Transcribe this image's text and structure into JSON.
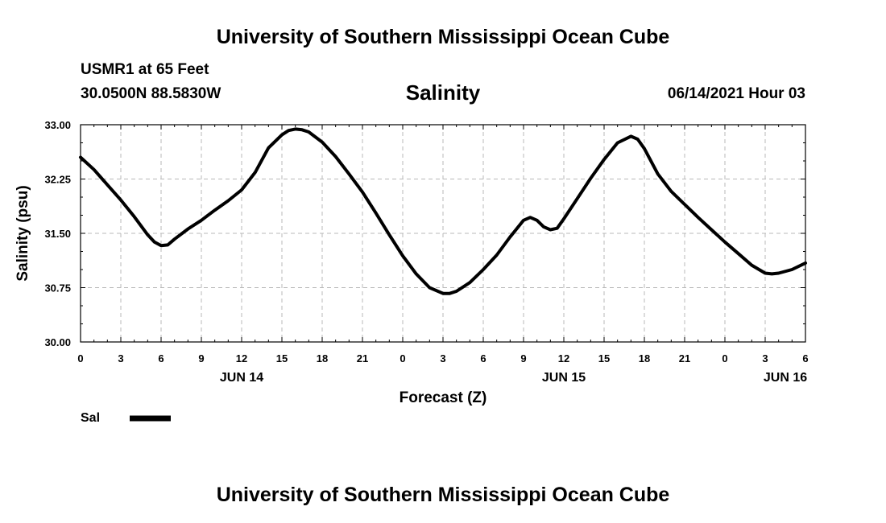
{
  "page": {
    "title_top": "University of Southern Mississippi Ocean Cube",
    "title_bottom": "University of Southern Mississippi Ocean Cube",
    "station": "USMR1 at 65 Feet",
    "coordinates": "30.0500N  88.5830W",
    "subtitle": "Salinity",
    "datetime": "06/14/2021 Hour 03"
  },
  "chart_data": {
    "type": "line",
    "title": "Salinity",
    "xlabel": "Forecast (Z)",
    "ylabel": "Salinity (psu)",
    "ylim": [
      30.0,
      33.0
    ],
    "yticks": [
      "30.00",
      "30.75",
      "31.50",
      "32.25",
      "33.00"
    ],
    "ytick_values": [
      30.0,
      30.75,
      31.5,
      32.25,
      33.0
    ],
    "xlim": [
      0,
      54
    ],
    "xticks": [
      0,
      3,
      6,
      9,
      12,
      15,
      18,
      21,
      24,
      27,
      30,
      33,
      36,
      39,
      42,
      45,
      48,
      51,
      54
    ],
    "xtick_labels": [
      "0",
      "3",
      "6",
      "9",
      "12",
      "15",
      "18",
      "21",
      "0",
      "3",
      "6",
      "9",
      "12",
      "15",
      "18",
      "21",
      "0",
      "3",
      "6"
    ],
    "day_labels": [
      {
        "hour": 12,
        "label": "JUN 14"
      },
      {
        "hour": 36,
        "label": "JUN 15"
      },
      {
        "hour": 52.5,
        "label": "JUN 16"
      }
    ],
    "grid": true,
    "legend": {
      "label": "Sal",
      "position": "bottom-left"
    },
    "series": [
      {
        "name": "Sal",
        "color": "#000000",
        "x": [
          0,
          1,
          2,
          3,
          4,
          5,
          5.5,
          6,
          6.5,
          7,
          8,
          9,
          10,
          11,
          12,
          13,
          14,
          15,
          15.5,
          16,
          16.5,
          17,
          18,
          19,
          20,
          21,
          22,
          23,
          24,
          25,
          26,
          27,
          27.5,
          28,
          29,
          30,
          31,
          32,
          33,
          33.5,
          34,
          34.5,
          35,
          35.5,
          36,
          37,
          38,
          39,
          40,
          41,
          41.5,
          42,
          43,
          44,
          45,
          46,
          47,
          48,
          49,
          50,
          51,
          51.5,
          52,
          53,
          54
        ],
        "values": [
          32.55,
          32.38,
          32.17,
          31.96,
          31.73,
          31.48,
          31.38,
          31.33,
          31.34,
          31.42,
          31.56,
          31.68,
          31.82,
          31.95,
          32.1,
          32.34,
          32.68,
          32.86,
          32.92,
          32.94,
          32.93,
          32.9,
          32.76,
          32.56,
          32.32,
          32.07,
          31.78,
          31.48,
          31.19,
          30.94,
          30.75,
          30.67,
          30.67,
          30.7,
          30.82,
          31.0,
          31.2,
          31.45,
          31.68,
          31.72,
          31.68,
          31.59,
          31.55,
          31.57,
          31.7,
          31.98,
          32.26,
          32.52,
          32.75,
          32.84,
          32.8,
          32.67,
          32.32,
          32.08,
          31.9,
          31.72,
          31.55,
          31.38,
          31.22,
          31.06,
          30.95,
          30.94,
          30.95,
          31.0,
          31.09
        ]
      }
    ]
  }
}
